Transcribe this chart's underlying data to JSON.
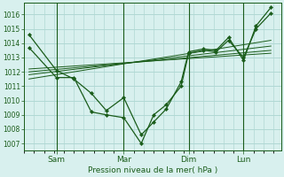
{
  "background_color": "#d8f0ee",
  "plot_bg_color": "#d8f0ee",
  "grid_color": "#b0d8d4",
  "line_color": "#1a5c1a",
  "ylabel": "Pression niveau de la mer( hPa )",
  "ylim": [
    1006.5,
    1016.8
  ],
  "yticks": [
    1007,
    1008,
    1009,
    1010,
    1011,
    1012,
    1013,
    1014,
    1015,
    1016
  ],
  "xtick_labels": [
    "Sam",
    "Mar",
    "Dim",
    "Lun"
  ],
  "xtick_positions": [
    0.13,
    0.4,
    0.66,
    0.88
  ],
  "series1_x": [
    0.02,
    0.13,
    0.2,
    0.27,
    0.33,
    0.4,
    0.47,
    0.52,
    0.57,
    0.63,
    0.66,
    0.72,
    0.77,
    0.82,
    0.88,
    0.93,
    0.99
  ],
  "series1_y": [
    1014.6,
    1012.1,
    1011.5,
    1010.5,
    1009.3,
    1010.2,
    1007.6,
    1008.5,
    1009.4,
    1011.3,
    1013.4,
    1013.6,
    1013.5,
    1014.4,
    1012.8,
    1015.2,
    1016.5
  ],
  "series2_x": [
    0.02,
    0.13,
    0.2,
    0.27,
    0.33,
    0.4,
    0.47,
    0.52,
    0.57,
    0.63,
    0.66,
    0.72,
    0.77,
    0.82,
    0.88,
    0.93,
    0.99
  ],
  "series2_y": [
    1013.7,
    1011.6,
    1011.6,
    1009.2,
    1009.0,
    1008.8,
    1007.0,
    1009.0,
    1009.7,
    1011.0,
    1013.3,
    1013.5,
    1013.4,
    1014.2,
    1013.0,
    1015.0,
    1016.1
  ],
  "trend_lines": [
    [
      [
        0.02,
        0.99
      ],
      [
        1012.2,
        1013.3
      ]
    ],
    [
      [
        0.02,
        0.99
      ],
      [
        1012.0,
        1013.5
      ]
    ],
    [
      [
        0.02,
        0.99
      ],
      [
        1011.8,
        1013.8
      ]
    ],
    [
      [
        0.02,
        0.99
      ],
      [
        1011.5,
        1014.2
      ]
    ]
  ],
  "vline_positions": [
    0.13,
    0.4,
    0.66,
    0.88
  ]
}
